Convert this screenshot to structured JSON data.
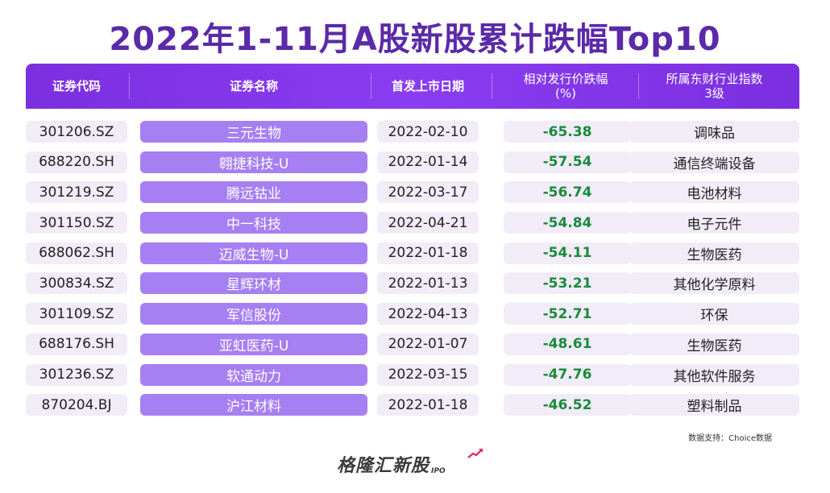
{
  "title": "2022年1-11月A股新股累计跌幅Top10",
  "headers": {
    "code": "证券代码",
    "name": "证券名称",
    "date": "首发上市日期",
    "pct_line1": "相对发行价跌幅",
    "pct_line2": "(%)",
    "industry_line1": "所属东财行业指数",
    "industry_line2": "3级"
  },
  "rows": [
    {
      "code": "301206.SZ",
      "name": "三元生物",
      "date": "2022-02-10",
      "pct": "-65.38",
      "industry": "调味品"
    },
    {
      "code": "688220.SH",
      "name": "翱捷科技-U",
      "date": "2022-01-14",
      "pct": "-57.54",
      "industry": "通信终端设备"
    },
    {
      "code": "301219.SZ",
      "name": "腾远钴业",
      "date": "2022-03-17",
      "pct": "-56.74",
      "industry": "电池材料"
    },
    {
      "code": "301150.SZ",
      "name": "中一科技",
      "date": "2022-04-21",
      "pct": "-54.84",
      "industry": "电子元件"
    },
    {
      "code": "688062.SH",
      "name": "迈威生物-U",
      "date": "2022-01-18",
      "pct": "-54.11",
      "industry": "生物医药"
    },
    {
      "code": "300834.SZ",
      "name": "星辉环材",
      "date": "2022-01-13",
      "pct": "-53.21",
      "industry": "其他化学原料"
    },
    {
      "code": "301109.SZ",
      "name": "军信股份",
      "date": "2022-04-13",
      "pct": "-52.71",
      "industry": "环保"
    },
    {
      "code": "688176.SH",
      "name": "亚虹医药-U",
      "date": "2022-01-07",
      "pct": "-48.61",
      "industry": "生物医药"
    },
    {
      "code": "301236.SZ",
      "name": "软通动力",
      "date": "2022-03-15",
      "pct": "-47.76",
      "industry": "其他软件服务"
    },
    {
      "code": "870204.BJ",
      "name": "沪江材料",
      "date": "2022-01-18",
      "pct": "-46.52",
      "industry": "塑料制品"
    }
  ],
  "source": "数据支持：Choice数据",
  "logo": {
    "text": "格隆汇新股",
    "sub": "IPO"
  },
  "colors": {
    "accent": "#7b2fe0",
    "name_cell": "#a67ff2",
    "negative": "#1a8a3c",
    "title": "#5a2aa8"
  }
}
